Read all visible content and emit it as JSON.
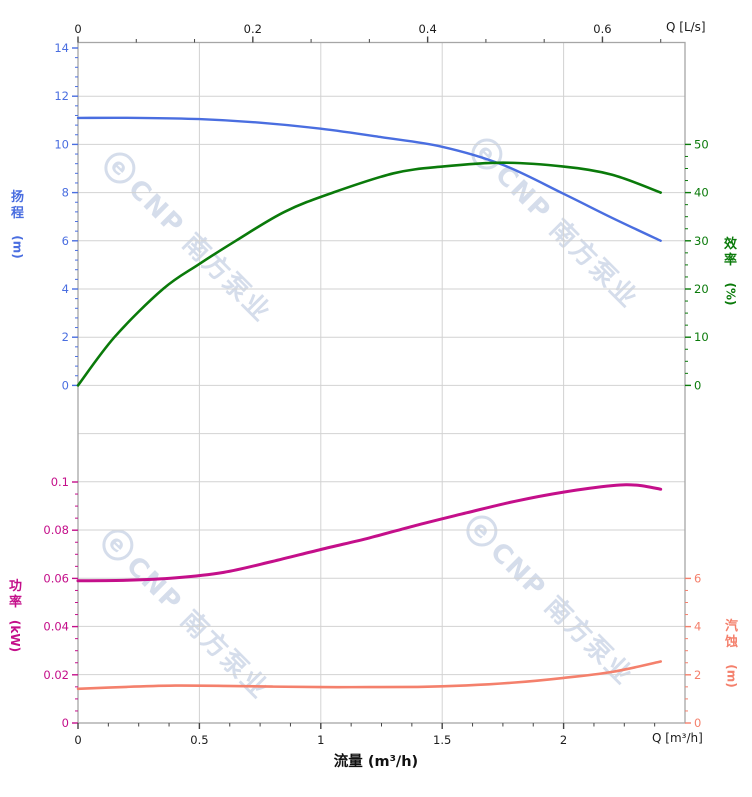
{
  "watermark": {
    "logo": "e",
    "text": "CNP 南方泵业"
  },
  "chart_data": {
    "type": "line",
    "title": "",
    "x_axis_bottom": {
      "label": "流量 (m³/h)",
      "unit_label": "Q [m³/h]",
      "range": [
        0,
        2.5
      ],
      "ticks": [
        [
          0,
          "0"
        ],
        [
          0.5,
          "0.5"
        ],
        [
          1,
          "1"
        ],
        [
          1.5,
          "1.5"
        ],
        [
          2,
          "2"
        ]
      ]
    },
    "x_axis_top": {
      "unit_label": "Q [L/s]",
      "range": [
        0,
        0.694
      ],
      "ticks": [
        [
          0,
          "0"
        ],
        [
          0.2,
          "0.2"
        ],
        [
          0.4,
          "0.4"
        ],
        [
          0.6,
          "0.6"
        ]
      ]
    },
    "axes": {
      "head": {
        "title": "扬程",
        "unit": "(m)",
        "color": "#4a6ee0",
        "range": [
          0,
          14
        ],
        "ticks": [
          [
            14,
            "14"
          ],
          [
            12,
            "12"
          ],
          [
            10,
            "10"
          ],
          [
            8,
            "8"
          ],
          [
            6,
            "6"
          ],
          [
            4,
            "4"
          ],
          [
            2,
            "2"
          ],
          [
            0,
            "0"
          ]
        ]
      },
      "eff": {
        "title": "效率",
        "unit": "(%)",
        "color": "#0a7a0a",
        "range": [
          0,
          50
        ],
        "ticks": [
          [
            50,
            "50"
          ],
          [
            40,
            "40"
          ],
          [
            30,
            "30"
          ],
          [
            20,
            "20"
          ],
          [
            10,
            "10"
          ],
          [
            0,
            "0"
          ]
        ]
      },
      "power": {
        "title": "功率",
        "unit": "(kW)",
        "color": "#c40f8a",
        "range": [
          0,
          0.1
        ],
        "ticks": [
          [
            0.1,
            "0.1"
          ],
          [
            0.08,
            "0.08"
          ],
          [
            0.06,
            "0.06"
          ],
          [
            0.04,
            "0.04"
          ],
          [
            0.02,
            "0.02"
          ],
          [
            0,
            "0"
          ]
        ]
      },
      "npsh": {
        "title": "汽蚀",
        "unit": "(m)",
        "color": "#f4806c",
        "range": [
          0,
          6
        ],
        "ticks": [
          [
            6,
            "6"
          ],
          [
            4,
            "4"
          ],
          [
            2,
            "2"
          ],
          [
            0,
            "0"
          ]
        ]
      }
    },
    "series": [
      {
        "name": "扬程",
        "axis": "head",
        "color": "#4a6ee0",
        "width": 2.4,
        "points": [
          [
            0,
            11.1
          ],
          [
            0.25,
            11.1
          ],
          [
            0.5,
            11.05
          ],
          [
            0.75,
            10.9
          ],
          [
            1,
            10.65
          ],
          [
            1.25,
            10.3
          ],
          [
            1.5,
            9.9
          ],
          [
            1.75,
            9.15
          ],
          [
            2,
            7.95
          ],
          [
            2.2,
            6.95
          ],
          [
            2.4,
            6.0
          ]
        ]
      },
      {
        "name": "效率",
        "axis": "eff",
        "color": "#0a7a0a",
        "width": 2.6,
        "points": [
          [
            0,
            0
          ],
          [
            0.15,
            10
          ],
          [
            0.35,
            20
          ],
          [
            0.5,
            25.2
          ],
          [
            0.65,
            30
          ],
          [
            0.85,
            36
          ],
          [
            1.05,
            40
          ],
          [
            1.3,
            44
          ],
          [
            1.5,
            45.4
          ],
          [
            1.75,
            46.2
          ],
          [
            2,
            45.4
          ],
          [
            2.2,
            43.7
          ],
          [
            2.4,
            40
          ]
        ]
      },
      {
        "name": "功率",
        "axis": "power",
        "color": "#c40f8a",
        "width": 3,
        "points": [
          [
            0,
            0.059
          ],
          [
            0.2,
            0.0592
          ],
          [
            0.4,
            0.0602
          ],
          [
            0.6,
            0.0625
          ],
          [
            0.8,
            0.067
          ],
          [
            1,
            0.072
          ],
          [
            1.2,
            0.0768
          ],
          [
            1.4,
            0.0822
          ],
          [
            1.6,
            0.0872
          ],
          [
            1.8,
            0.092
          ],
          [
            2,
            0.0958
          ],
          [
            2.2,
            0.0985
          ],
          [
            2.3,
            0.0987
          ],
          [
            2.4,
            0.097
          ]
        ]
      },
      {
        "name": "汽蚀",
        "axis": "npsh",
        "color": "#f4806c",
        "width": 2.6,
        "points": [
          [
            0,
            1.42
          ],
          [
            0.2,
            1.5
          ],
          [
            0.4,
            1.55
          ],
          [
            0.6,
            1.54
          ],
          [
            0.8,
            1.51
          ],
          [
            1,
            1.49
          ],
          [
            1.2,
            1.49
          ],
          [
            1.4,
            1.5
          ],
          [
            1.6,
            1.56
          ],
          [
            1.8,
            1.68
          ],
          [
            2,
            1.87
          ],
          [
            2.2,
            2.12
          ],
          [
            2.4,
            2.55
          ]
        ]
      }
    ],
    "colors": {
      "grid": "#d2d2d2",
      "frame": "#a6a6a6",
      "axis_text": "#1c1c1c",
      "watermark": "#bbc8de"
    },
    "legend_position": "none",
    "grid": true
  }
}
